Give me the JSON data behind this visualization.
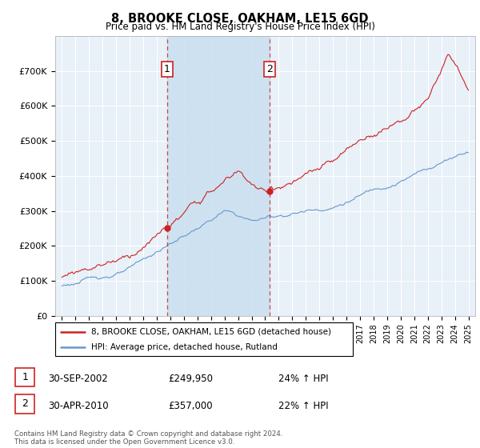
{
  "title": "8, BROOKE CLOSE, OAKHAM, LE15 6GD",
  "subtitle": "Price paid vs. HM Land Registry's House Price Index (HPI)",
  "legend_line1": "8, BROOKE CLOSE, OAKHAM, LE15 6GD (detached house)",
  "legend_line2": "HPI: Average price, detached house, Rutland",
  "transaction1_date": "30-SEP-2002",
  "transaction1_price": "£249,950",
  "transaction1_hpi": "24% ↑ HPI",
  "transaction2_date": "30-APR-2010",
  "transaction2_price": "£357,000",
  "transaction2_hpi": "22% ↑ HPI",
  "footer": "Contains HM Land Registry data © Crown copyright and database right 2024.\nThis data is licensed under the Open Government Licence v3.0.",
  "xmin": 1994.5,
  "xmax": 2025.5,
  "ymin": 0,
  "ymax": 800000,
  "red_color": "#cc2222",
  "blue_color": "#6699cc",
  "shade_color": "#cce0f0",
  "background_color": "#e8f0f8",
  "marker1_x": 2002.75,
  "marker1_y": 249950,
  "marker2_x": 2010.33,
  "marker2_y": 357000,
  "yticks": [
    0,
    100000,
    200000,
    300000,
    400000,
    500000,
    600000,
    700000
  ],
  "ylabels": [
    "£0",
    "£100K",
    "£200K",
    "£300K",
    "£400K",
    "£500K",
    "£600K",
    "£700K"
  ]
}
